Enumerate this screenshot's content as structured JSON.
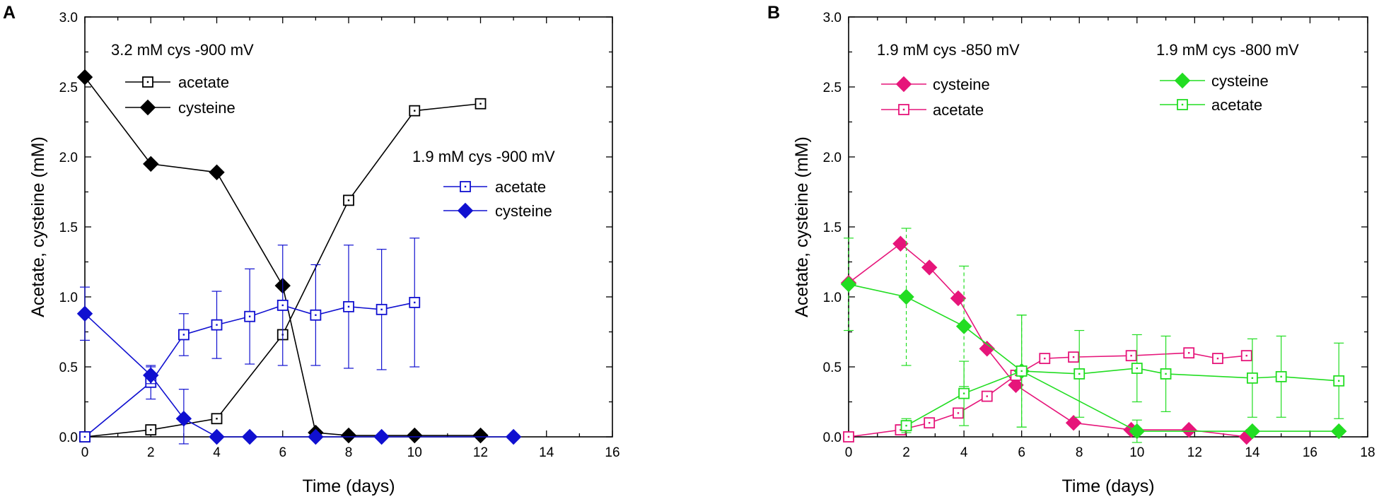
{
  "chart_data": [
    {
      "panel": "A",
      "type": "line",
      "xlabel": "Time (days)",
      "ylabel": "Acetate, cysteine (mM)",
      "xlim": [
        0,
        16
      ],
      "ylim": [
        0,
        3.0
      ],
      "x_ticks": [
        "0",
        "2",
        "4",
        "6",
        "8",
        "10",
        "12",
        "14",
        "16"
      ],
      "y_ticks": [
        "0.0",
        "0.5",
        "1.0",
        "1.5",
        "2.0",
        "2.5",
        "3.0"
      ],
      "legend_groups": [
        {
          "title": "3.2 mM cys -900 mV",
          "entries": [
            {
              "label": "acetate",
              "series": 0
            },
            {
              "label": "cysteine",
              "series": 1
            }
          ]
        },
        {
          "title": "1.9 mM cys -900 mV",
          "entries": [
            {
              "label": "acetate",
              "series": 2
            },
            {
              "label": "cysteine",
              "series": 3
            }
          ]
        }
      ],
      "series": [
        {
          "name": "acetate (3.2 mM cys -900 mV)",
          "color": "#000000",
          "marker": "open-square",
          "x": [
            0,
            2,
            4,
            6,
            8,
            10,
            12
          ],
          "y": [
            0.0,
            0.05,
            0.13,
            0.73,
            1.69,
            2.33,
            2.38
          ]
        },
        {
          "name": "cysteine (3.2 mM cys -900 mV)",
          "color": "#000000",
          "marker": "filled-diamond",
          "x": [
            0,
            2,
            4,
            6,
            7,
            8,
            10,
            12
          ],
          "y": [
            2.57,
            1.95,
            1.89,
            1.08,
            0.03,
            0.01,
            0.01,
            0.01
          ]
        },
        {
          "name": "acetate (1.9 mM cys -900 mV)",
          "color": "#1010d0",
          "marker": "open-square",
          "x": [
            0,
            2,
            3,
            4,
            5,
            6,
            7,
            8,
            9,
            10
          ],
          "y": [
            0.0,
            0.39,
            0.73,
            0.8,
            0.86,
            0.94,
            0.87,
            0.93,
            0.91,
            0.96
          ],
          "err": [
            0,
            0.12,
            0.15,
            0.24,
            0.34,
            0.43,
            0.36,
            0.44,
            0.43,
            0.46
          ],
          "error_style": "solid"
        },
        {
          "name": "cysteine (1.9 mM cys -900 mV)",
          "color": "#1010d0",
          "marker": "filled-diamond",
          "x": [
            0,
            2,
            3,
            4,
            5,
            7,
            9,
            13
          ],
          "y": [
            0.88,
            0.44,
            0.13,
            0.0,
            0.0,
            0.0,
            0.0,
            0.0
          ],
          "err": [
            0.19,
            0.06,
            0.21,
            0,
            0,
            0,
            0,
            0
          ],
          "error_style": "solid"
        }
      ]
    },
    {
      "panel": "B",
      "type": "line",
      "xlabel": "Time (days)",
      "ylabel": "Acetate, cysteine (mM)",
      "xlim": [
        0,
        18
      ],
      "ylim": [
        0,
        3.0
      ],
      "x_ticks": [
        "0",
        "2",
        "4",
        "6",
        "8",
        "10",
        "12",
        "14",
        "16",
        "18"
      ],
      "y_ticks": [
        "0.0",
        "0.5",
        "1.0",
        "1.5",
        "2.0",
        "2.5",
        "3.0"
      ],
      "legend_groups": [
        {
          "title": "1.9 mM cys -850 mV",
          "entries": [
            {
              "label": "cysteine",
              "series": 0
            },
            {
              "label": "acetate",
              "series": 1
            }
          ]
        },
        {
          "title": "1.9 mM cys -800 mV",
          "entries": [
            {
              "label": "cysteine",
              "series": 2
            },
            {
              "label": "acetate",
              "series": 3
            }
          ]
        }
      ],
      "series": [
        {
          "name": "cysteine (1.9 mM cys -850 mV)",
          "color": "#e6157a",
          "marker": "filled-diamond",
          "x": [
            0,
            1.8,
            2.8,
            3.8,
            4.8,
            5.8,
            7.8,
            9.8,
            11.8,
            13.8
          ],
          "y": [
            1.1,
            1.38,
            1.21,
            0.99,
            0.63,
            0.37,
            0.1,
            0.05,
            0.05,
            0.0
          ]
        },
        {
          "name": "acetate (1.9 mM cys -850 mV)",
          "color": "#e6157a",
          "marker": "open-square",
          "x": [
            0,
            1.8,
            2.8,
            3.8,
            4.8,
            5.8,
            6.8,
            7.8,
            9.8,
            11.8,
            12.8,
            13.8
          ],
          "y": [
            0.0,
            0.05,
            0.1,
            0.17,
            0.29,
            0.44,
            0.56,
            0.57,
            0.58,
            0.6,
            0.56,
            0.58
          ]
        },
        {
          "name": "cysteine (1.9 mM cys -800 mV)",
          "color": "#22dd22",
          "marker": "filled-diamond",
          "x": [
            0,
            2,
            4,
            6,
            10,
            14,
            17
          ],
          "y": [
            1.09,
            1.0,
            0.79,
            0.47,
            0.04,
            0.04,
            0.04
          ],
          "err": [
            0.33,
            0.49,
            0.43,
            0.4,
            0.08,
            0,
            0
          ],
          "error_style": "dashed"
        },
        {
          "name": "acetate (1.9 mM cys -800 mV)",
          "color": "#22dd22",
          "marker": "open-square",
          "x": [
            2,
            4,
            6,
            8,
            10,
            11,
            14,
            15,
            17
          ],
          "y": [
            0.08,
            0.31,
            0.47,
            0.45,
            0.49,
            0.45,
            0.42,
            0.43,
            0.4
          ],
          "err": [
            0.05,
            0.23,
            0.4,
            0.31,
            0.24,
            0.27,
            0.28,
            0.29,
            0.27
          ],
          "error_style": "solid"
        }
      ]
    }
  ]
}
